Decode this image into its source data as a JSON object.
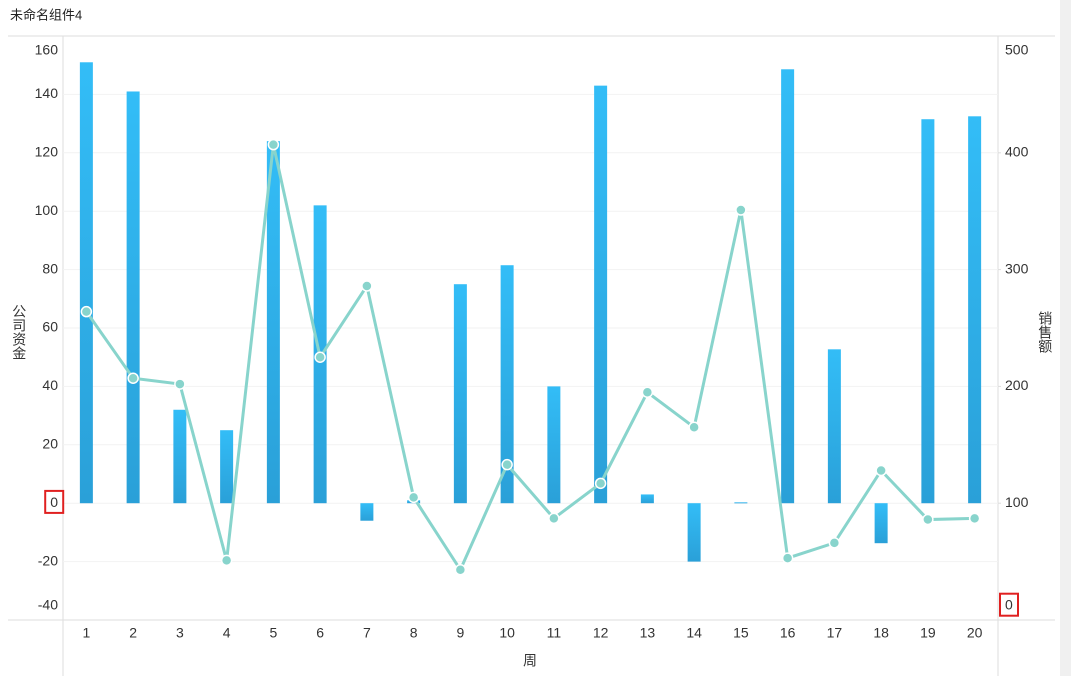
{
  "chart_data": {
    "type": "bar_line",
    "title": "未命名组件4",
    "x_label": "周",
    "y_label": "公司资金",
    "y2_label": "销售额",
    "categories": [
      "1",
      "2",
      "3",
      "4",
      "5",
      "6",
      "7",
      "8",
      "9",
      "10",
      "11",
      "12",
      "13",
      "14",
      "15",
      "16",
      "17",
      "18",
      "19",
      "20"
    ],
    "series": [
      {
        "name": "公司资金",
        "type": "bar",
        "color": "#33b6f0",
        "values": [
          151,
          141,
          32,
          25,
          124,
          102,
          -6,
          1,
          75,
          81.5,
          40,
          143,
          3,
          -20,
          0.3,
          148.6,
          52.7,
          -13.7,
          131.5,
          132.5
        ]
      },
      {
        "name": "销售额",
        "type": "line",
        "axis": "y2",
        "color": "#88d4cc",
        "values": [
          264,
          207,
          202,
          51,
          407,
          225,
          286,
          105,
          43,
          133,
          87,
          117,
          195,
          165,
          351,
          53,
          66,
          128,
          86,
          87
        ]
      }
    ],
    "ylim": [
      -40,
      160
    ],
    "yticks": [
      -40,
      -20,
      0,
      20,
      40,
      60,
      80,
      100,
      120,
      140,
      160
    ],
    "y2lim": [
      0,
      500
    ],
    "y2ticks": [
      0,
      100,
      200,
      300,
      400,
      500
    ],
    "grid": true
  }
}
